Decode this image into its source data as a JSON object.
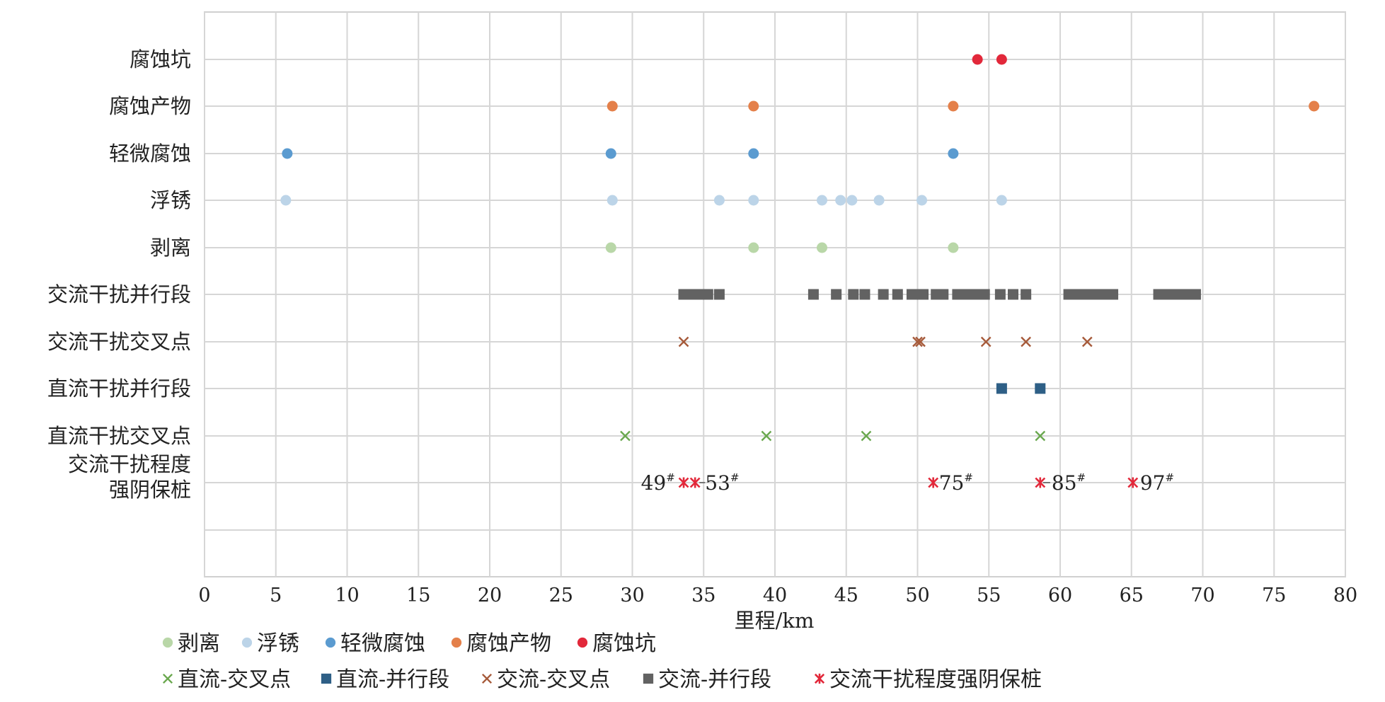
{
  "chart_data": {
    "type": "scatter",
    "xlabel": "里程/km",
    "xlim": [
      0,
      80
    ],
    "x_ticks": [
      "0",
      "5",
      "10",
      "15",
      "20",
      "25",
      "30",
      "35",
      "40",
      "45",
      "50",
      "55",
      "60",
      "65",
      "70",
      "75",
      "80"
    ],
    "grid": true,
    "legend_position": "bottom",
    "categories": [
      "腐蚀坑",
      "腐蚀产物",
      "轻微腐蚀",
      "浮锈",
      "剥离",
      "交流干扰并行段",
      "交流干扰交叉点",
      "直流干扰并行段",
      "直流干扰交叉点",
      "交流干扰程度强阴保桩"
    ],
    "category_lines": [
      [
        "腐蚀坑"
      ],
      [
        "腐蚀产物"
      ],
      [
        "轻微腐蚀"
      ],
      [
        "浮锈"
      ],
      [
        "剥离"
      ],
      [
        "交流干扰并行段"
      ],
      [
        "交流干扰交叉点"
      ],
      [
        "直流干扰并行段"
      ],
      [
        "直流干扰交叉点"
      ],
      [
        "交流干扰程度",
        "强阴保桩"
      ]
    ],
    "series": [
      {
        "name": "剥离",
        "category": "剥离",
        "marker": "circle",
        "color": "#b9d7a8",
        "x": [
          28.5,
          38.5,
          43.3,
          52.5
        ]
      },
      {
        "name": "浮锈",
        "category": "浮锈",
        "marker": "circle",
        "color": "#bcd4e8",
        "x": [
          5.7,
          28.6,
          36.1,
          38.5,
          43.3,
          44.6,
          45.4,
          47.3,
          50.3,
          55.9
        ]
      },
      {
        "name": "轻微腐蚀",
        "category": "轻微腐蚀",
        "marker": "circle",
        "color": "#5b9bd0",
        "x": [
          5.8,
          28.5,
          38.5,
          52.5
        ]
      },
      {
        "name": "腐蚀产物",
        "category": "腐蚀产物",
        "marker": "circle",
        "color": "#e4804a",
        "x": [
          28.6,
          38.5,
          52.5,
          77.8
        ]
      },
      {
        "name": "腐蚀坑",
        "category": "腐蚀坑",
        "marker": "circle",
        "color": "#e2283a",
        "x": [
          54.2,
          55.9
        ]
      },
      {
        "name": "直流-交叉点",
        "category": "直流干扰交叉点",
        "marker": "x",
        "color": "#6aa84f",
        "x": [
          29.5,
          39.4,
          46.4,
          58.6
        ]
      },
      {
        "name": "直流-并行段",
        "category": "直流干扰并行段",
        "marker": "square",
        "color": "#2e5f86",
        "x": [
          55.9,
          58.6
        ]
      },
      {
        "name": "交流-交叉点",
        "category": "交流干扰交叉点",
        "marker": "x",
        "color": "#a65a3a",
        "x": [
          33.6,
          50.0,
          50.2,
          54.8,
          57.6,
          61.9
        ]
      },
      {
        "name": "交流-并行段",
        "category": "交流干扰并行段",
        "marker": "square",
        "color": "#626262",
        "x": [
          33.6,
          34.1,
          34.5,
          35.0,
          35.3,
          36.1,
          42.7,
          44.3,
          45.5,
          46.3,
          47.6,
          48.6,
          49.6,
          50.2,
          50.4,
          51.3,
          51.8,
          52.8,
          53.3,
          53.7,
          54.2,
          54.7,
          55.8,
          56.7,
          57.6,
          60.6,
          61.1,
          61.6,
          62.1,
          62.6,
          63.1,
          63.7,
          66.9,
          67.5,
          68.0,
          68.5,
          69.1,
          69.5
        ]
      },
      {
        "name": "交流干扰程度强阴保桩",
        "category": "交流干扰程度强阴保桩",
        "marker": "asterisk",
        "color": "#e2283a",
        "x": [
          33.6,
          34.4,
          51.1,
          58.6,
          65.1
        ]
      }
    ],
    "annotations": [
      {
        "label": "49",
        "sup": "#",
        "x": 30.6,
        "anchor": "start"
      },
      {
        "label": "53",
        "sup": "#",
        "x": 35.1,
        "anchor": "start"
      },
      {
        "label": "75",
        "sup": "#",
        "x": 51.5,
        "anchor": "start"
      },
      {
        "label": "85",
        "sup": "#",
        "x": 59.4,
        "anchor": "start"
      },
      {
        "label": "97",
        "sup": "#",
        "x": 65.6,
        "anchor": "start"
      }
    ],
    "legend_rows": [
      [
        "剥离",
        "浮锈",
        "轻微腐蚀",
        "腐蚀产物",
        "腐蚀坑"
      ],
      [
        "直流-交叉点",
        "直流-并行段",
        "交流-交叉点",
        "交流-并行段",
        "交流干扰程度强阴保桩"
      ]
    ]
  }
}
